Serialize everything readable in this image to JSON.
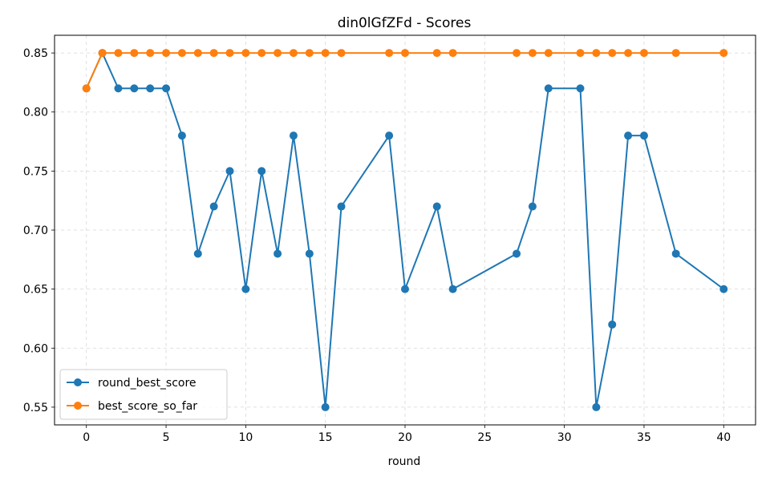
{
  "chart_data": {
    "type": "line",
    "title": "din0lGfZFd - Scores",
    "xlabel": "round",
    "ylabel": "",
    "xlim": [
      -2,
      42
    ],
    "ylim": [
      0.535,
      0.865
    ],
    "x_ticks": [
      0,
      5,
      10,
      15,
      20,
      25,
      30,
      35,
      40
    ],
    "y_ticks": [
      0.55,
      0.6,
      0.65,
      0.7,
      0.75,
      0.8,
      0.85
    ],
    "x_tick_labels": [
      "0",
      "5",
      "10",
      "15",
      "20",
      "25",
      "30",
      "35",
      "40"
    ],
    "y_tick_labels": [
      "0.55",
      "0.60",
      "0.65",
      "0.70",
      "0.75",
      "0.80",
      "0.85"
    ],
    "grid": true,
    "legend_position": "bottom-left",
    "x": [
      0,
      1,
      2,
      3,
      4,
      5,
      6,
      7,
      8,
      9,
      10,
      11,
      12,
      13,
      14,
      15,
      16,
      19,
      20,
      22,
      23,
      27,
      28,
      29,
      31,
      32,
      33,
      34,
      35,
      37,
      40
    ],
    "series": [
      {
        "name": "round_best_score",
        "color": "#1f77b4",
        "values": [
          0.82,
          0.85,
          0.82,
          0.82,
          0.82,
          0.82,
          0.78,
          0.68,
          0.72,
          0.75,
          0.65,
          0.75,
          0.68,
          0.78,
          0.68,
          0.55,
          0.72,
          0.78,
          0.65,
          0.72,
          0.65,
          0.68,
          0.72,
          0.82,
          0.82,
          0.55,
          0.62,
          0.78,
          0.78,
          0.68,
          0.65
        ]
      },
      {
        "name": "best_score_so_far",
        "color": "#ff7f0e",
        "values": [
          0.82,
          0.85,
          0.85,
          0.85,
          0.85,
          0.85,
          0.85,
          0.85,
          0.85,
          0.85,
          0.85,
          0.85,
          0.85,
          0.85,
          0.85,
          0.85,
          0.85,
          0.85,
          0.85,
          0.85,
          0.85,
          0.85,
          0.85,
          0.85,
          0.85,
          0.85,
          0.85,
          0.85,
          0.85,
          0.85,
          0.85
        ]
      }
    ]
  }
}
